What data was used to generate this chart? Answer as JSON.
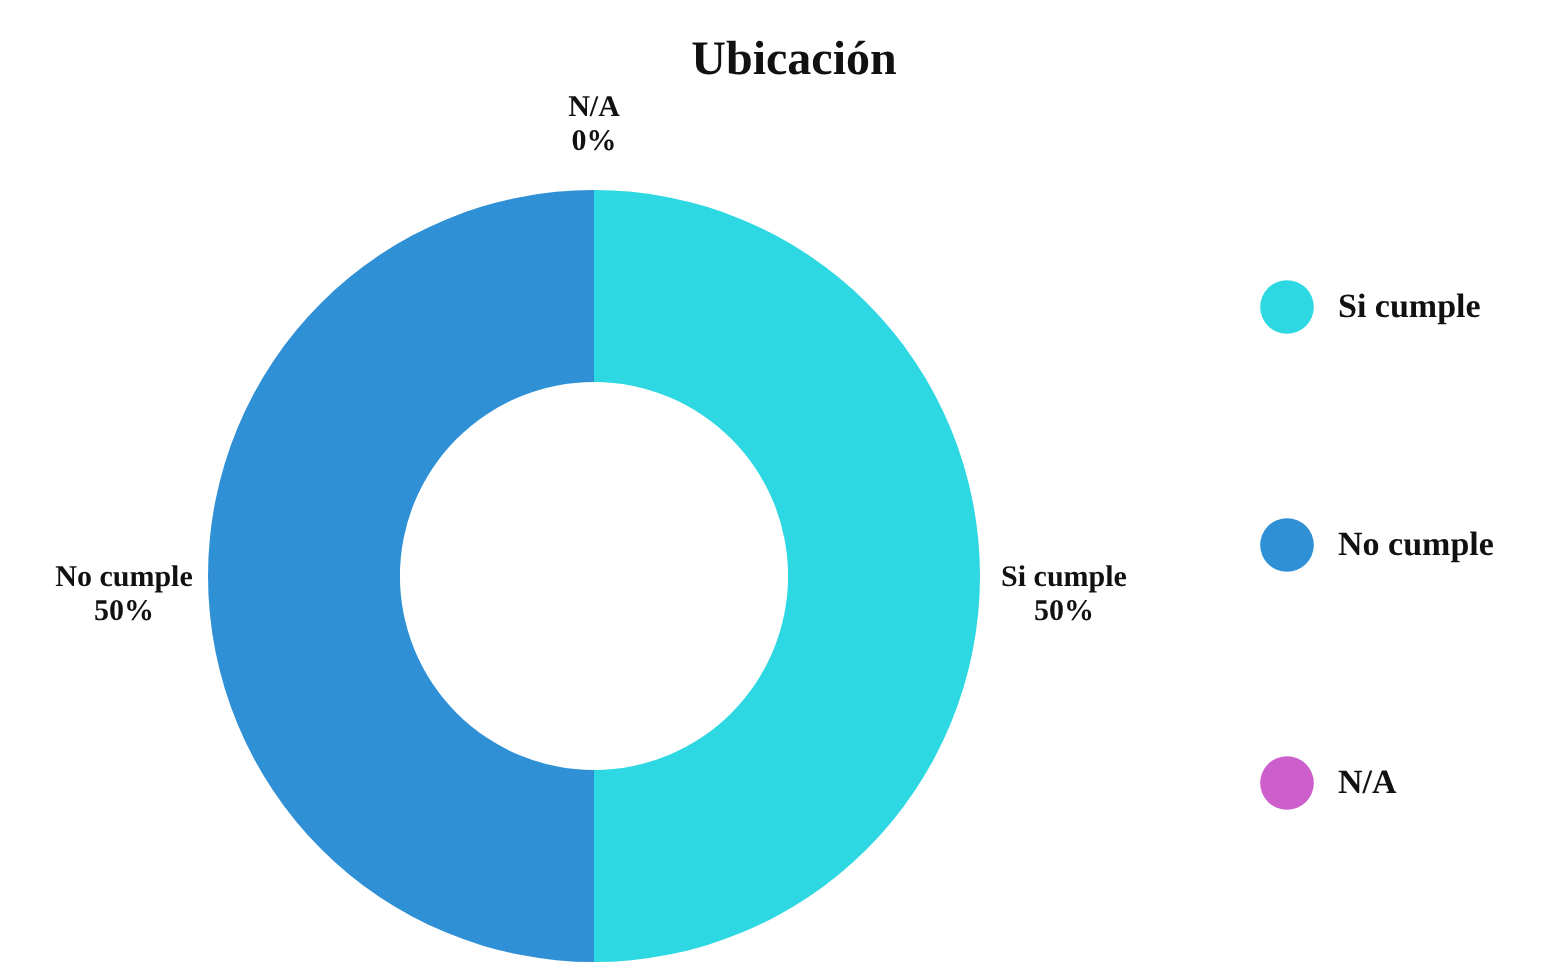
{
  "chart_data": {
    "type": "donut",
    "title": "Ubicación",
    "categories": [
      "Si cumple",
      "No cumple",
      "N/A"
    ],
    "values": [
      50,
      50,
      0
    ],
    "colors": [
      "#2ed8e2",
      "#2f90d6",
      "#cc5fcc"
    ],
    "value_labels": [
      "50%",
      "50%",
      "0%"
    ],
    "legend": "right"
  }
}
